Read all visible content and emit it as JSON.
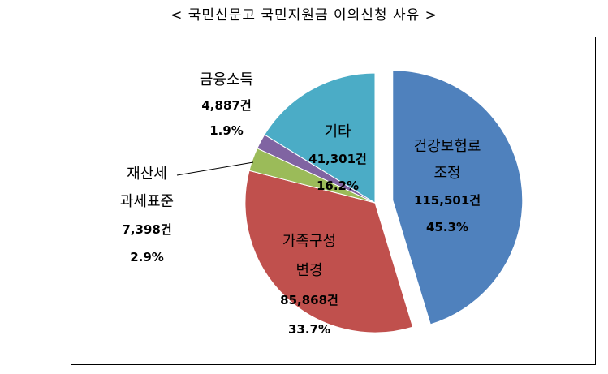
{
  "title": "< 국민신문고 국민지원금 이의신청 사유 >",
  "chart_data": {
    "type": "pie",
    "title": "< 국민신문고 국민지원금 이의신청 사유 >",
    "slices": [
      {
        "label_lines": [
          "건강보험료",
          "조정"
        ],
        "count": "115,501건",
        "percent": "45.3%",
        "value": 45.3,
        "color": "#4f81bd",
        "exploded": true
      },
      {
        "label_lines": [
          "가족구성",
          "변경"
        ],
        "count": "85,868건",
        "percent": "33.7%",
        "value": 33.7,
        "color": "#c0504d",
        "exploded": false
      },
      {
        "label_lines": [
          "재산세",
          "과세표준"
        ],
        "count": "7,398건",
        "percent": "2.9%",
        "value": 2.9,
        "color": "#9bbb59",
        "exploded": false
      },
      {
        "label_lines": [
          "금융소득"
        ],
        "count": "4,887건",
        "percent": "1.9%",
        "value": 1.9,
        "color": "#8064a2",
        "exploded": false
      },
      {
        "label_lines": [
          "기타"
        ],
        "count": "41,301건",
        "percent": "16.2%",
        "value": 16.2,
        "color": "#4bacc6",
        "exploded": false
      }
    ],
    "legend": "none"
  }
}
